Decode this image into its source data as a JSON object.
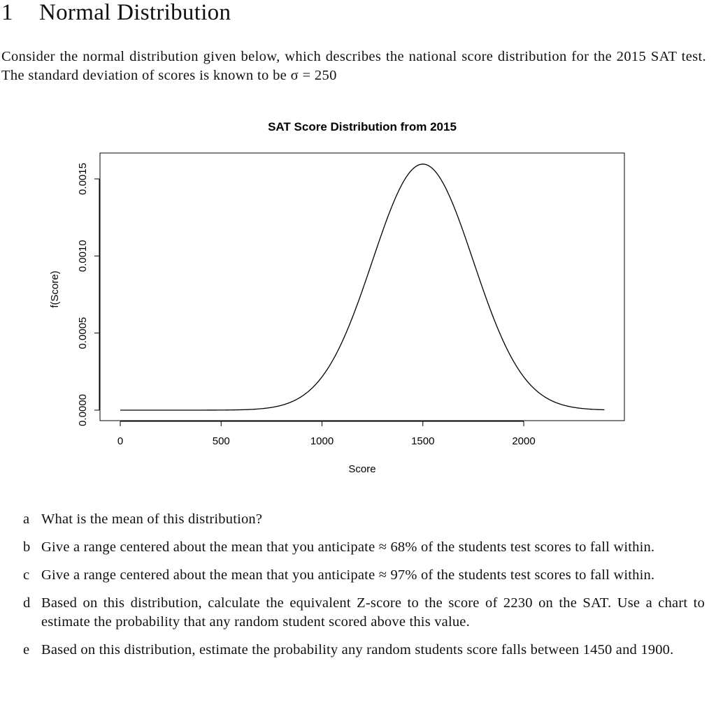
{
  "section": {
    "number": "1",
    "title": "Normal Distribution"
  },
  "intro": {
    "text": "Consider the normal distribution given below, which describes the national score distribution for the 2015 SAT test. The standard deviation of scores is known to be σ = 250"
  },
  "chart_data": {
    "type": "line",
    "title": "SAT Score Distribution from 2015",
    "xlabel": "Score",
    "ylabel": "f(Score)",
    "xlim": [
      0,
      2400
    ],
    "ylim": [
      0,
      0.0016
    ],
    "x_ticks": [
      0,
      500,
      1000,
      1500,
      2000
    ],
    "x_tick_labels": [
      "0",
      "500",
      "1000",
      "1500",
      "2000"
    ],
    "y_ticks": [
      0,
      0.0005,
      0.001,
      0.0015
    ],
    "y_tick_labels": [
      "0.0000",
      "0.0005",
      "0.0010",
      "0.0015"
    ],
    "series": [
      {
        "distribution": "normal",
        "mean": 1500,
        "sd": 250,
        "x_range": [
          0,
          2400
        ]
      }
    ],
    "grid": false,
    "line_color": "#000000"
  },
  "questions": [
    {
      "letter": "a",
      "text": "What is the mean of this distribution?"
    },
    {
      "letter": "b",
      "text": "Give a range centered about the mean that you anticipate ≈ 68% of the students test scores to fall within."
    },
    {
      "letter": "c",
      "text": "Give a range centered about the mean that you anticipate ≈ 97% of the students test scores to fall within."
    },
    {
      "letter": "d",
      "text": "Based on this distribution, calculate the equivalent Z-score to the score of 2230 on the SAT. Use a chart to estimate the probability that any random student scored above this value."
    },
    {
      "letter": "e",
      "text": "Based on this distribution, estimate the probability any random students score falls between 1450 and 1900."
    }
  ]
}
